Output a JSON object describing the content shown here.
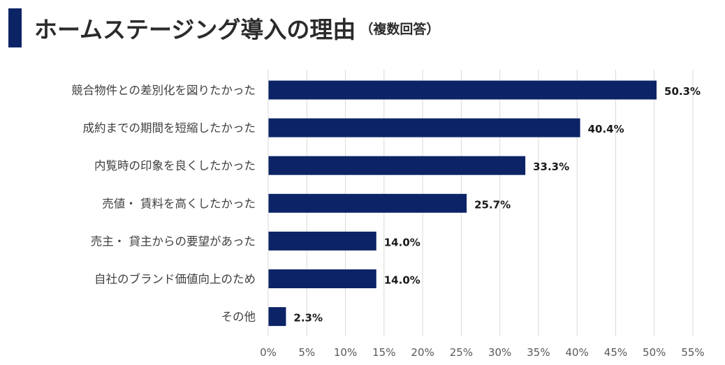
{
  "header": {
    "title": "ホームステージング導入の理由",
    "subtitle": "（複数回答）"
  },
  "chart_data": {
    "type": "bar",
    "orientation": "horizontal",
    "categories": [
      "競合物件との差別化を図りたかった",
      "成約までの期間を短縮したかった",
      "内覧時の印象を良くしたかった",
      "売値・ 賃料を高くしたかった",
      "売主・ 貸主からの要望があった",
      "自社のブランド価値向上のため",
      "その他"
    ],
    "values": [
      50.3,
      40.4,
      33.3,
      25.7,
      14.0,
      14.0,
      2.3
    ],
    "data_labels": [
      "50.3%",
      "40.4%",
      "33.3%",
      "25.7%",
      "14.0%",
      "14.0%",
      "2.3%"
    ],
    "xlim": [
      0,
      55
    ],
    "x_ticks": [
      "0%",
      "5%",
      "10%",
      "15%",
      "20%",
      "25%",
      "30%",
      "35%",
      "40%",
      "45%",
      "50%",
      "55%"
    ],
    "grid": true,
    "bar_color": "#0c2466",
    "grid_color": "#d9d9d9",
    "label_color": "#404040"
  }
}
